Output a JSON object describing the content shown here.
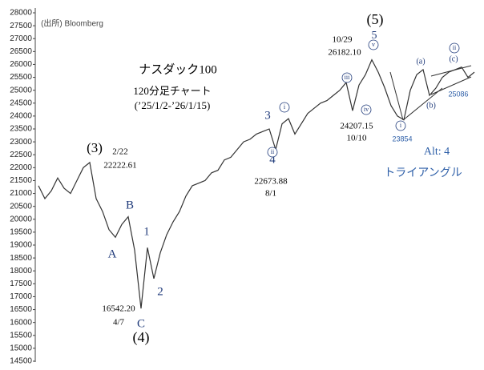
{
  "chart_data": {
    "type": "line",
    "color": "#333333",
    "values": [
      21300,
      20800,
      21100,
      21600,
      21200,
      21000,
      21500,
      22000,
      22200,
      20800,
      20300,
      19600,
      19300,
      19800,
      20100,
      18800,
      16542,
      18900,
      17700,
      18700,
      19400,
      19900,
      20300,
      20900,
      21300,
      21400,
      21500,
      21800,
      21900,
      22300,
      22400,
      22700,
      23000,
      23100,
      23300,
      23400,
      23500,
      22700,
      23700,
      23900,
      23300,
      23700,
      24100,
      24300,
      24500,
      24600,
      24800,
      25000,
      25300,
      24207,
      25200,
      25600,
      26182,
      25700,
      25100,
      24400,
      24000,
      23854,
      25000,
      25600,
      25800,
      24800,
      25086,
      25500,
      25700,
      25800,
      25900,
      25500,
      25700
    ],
    "ylim": [
      14500,
      28000
    ],
    "yticks": [
      14500,
      15000,
      15500,
      16000,
      16500,
      17000,
      17500,
      18000,
      18500,
      19000,
      19500,
      20000,
      20500,
      21000,
      21500,
      22000,
      22500,
      23000,
      23500,
      24000,
      24500,
      25000,
      25500,
      26000,
      26500,
      27000,
      27500,
      28000
    ],
    "annotations": [
      "(出所) Bloomberg",
      "ナスダック100",
      "120分足チャート",
      "(’25/1/2-’26/1/15)",
      "(3)",
      "2/22",
      "22222.61",
      "A",
      "B",
      "1",
      "2",
      "C",
      "(4)",
      "16542.20",
      "4/7",
      "3",
      "4",
      "22673.88",
      "8/1",
      "(5)",
      "10/29",
      "26182.10",
      "5",
      "24207.15",
      "10/10",
      "23854",
      "25086",
      "(a)",
      "(b)",
      "(c)",
      "Alt: 4",
      "トライアングル",
      "i",
      "ii",
      "iii",
      "iv",
      "v",
      "i",
      "ii"
    ]
  }
}
